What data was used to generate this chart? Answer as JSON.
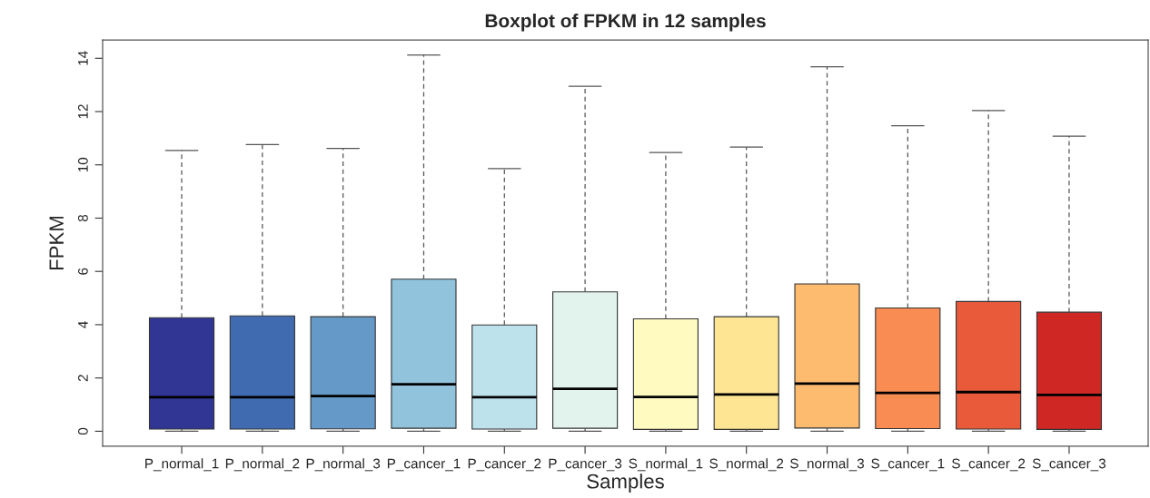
{
  "chart_data": {
    "type": "box",
    "title": "Boxplot of FPKM in 12 samples",
    "xlabel": "Samples",
    "ylabel": "FPKM",
    "categories": [
      "P_normal_1",
      "P_normal_2",
      "P_normal_3",
      "P_cancer_1",
      "P_cancer_2",
      "P_cancer_3",
      "S_normal_1",
      "S_normal_2",
      "S_normal_3",
      "S_cancer_1",
      "S_cancer_2",
      "S_cancer_3"
    ],
    "colors": [
      "#313695",
      "#416bb0",
      "#6499c8",
      "#91c3dd",
      "#bde2ec",
      "#e2f2ec",
      "#fefac0",
      "#fde593",
      "#fdbb6f",
      "#f88c53",
      "#e95a3a",
      "#cf2824"
    ],
    "boxes": [
      {
        "low": 0,
        "q1": 0.08,
        "median": 1.28,
        "q3": 4.26,
        "high": 10.54
      },
      {
        "low": 0,
        "q1": 0.08,
        "median": 1.28,
        "q3": 4.33,
        "high": 10.76
      },
      {
        "low": 0,
        "q1": 0.09,
        "median": 1.32,
        "q3": 4.3,
        "high": 10.62
      },
      {
        "low": 0,
        "q1": 0.11,
        "median": 1.76,
        "q3": 5.71,
        "high": 14.12
      },
      {
        "low": 0,
        "q1": 0.08,
        "median": 1.28,
        "q3": 3.99,
        "high": 9.86
      },
      {
        "low": 0,
        "q1": 0.11,
        "median": 1.59,
        "q3": 5.23,
        "high": 12.95
      },
      {
        "low": 0,
        "q1": 0.07,
        "median": 1.29,
        "q3": 4.22,
        "high": 10.46
      },
      {
        "low": 0,
        "q1": 0.07,
        "median": 1.38,
        "q3": 4.3,
        "high": 10.67
      },
      {
        "low": 0,
        "q1": 0.12,
        "median": 1.79,
        "q3": 5.53,
        "high": 13.68
      },
      {
        "low": 0,
        "q1": 0.1,
        "median": 1.44,
        "q3": 4.63,
        "high": 11.47
      },
      {
        "low": 0,
        "q1": 0.08,
        "median": 1.47,
        "q3": 4.87,
        "high": 12.04
      },
      {
        "low": 0,
        "q1": 0.07,
        "median": 1.36,
        "q3": 4.47,
        "high": 11.08
      }
    ],
    "ylim": [
      -0.565,
      14.69
    ],
    "yticks": [
      0,
      2,
      4,
      6,
      8,
      10,
      12,
      14
    ],
    "grid": false
  }
}
